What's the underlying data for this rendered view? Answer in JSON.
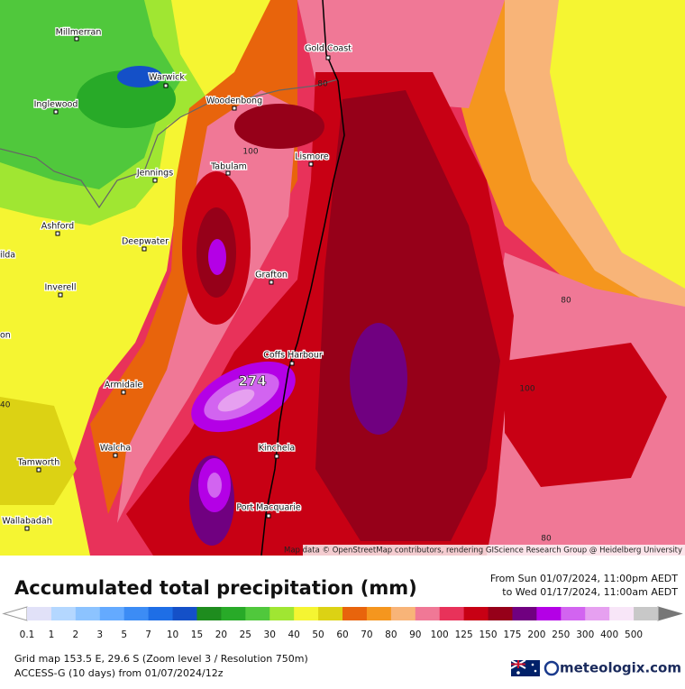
{
  "map": {
    "places": [
      "Millmerran",
      "Warwick",
      "Inglewood",
      "Woodenbong",
      "Gold Coast",
      "Lismore",
      "Tabulam",
      "Jennings",
      "Ashford",
      "Deepwater",
      "Inverell",
      "Grafton",
      "Coffs Harbour",
      "Armidale",
      "Walcha",
      "Kinchela",
      "Tamworth",
      "Port Macquarie",
      "Wallabadah",
      "ilda",
      "on"
    ],
    "contour_labels": [
      "80",
      "100",
      "80",
      "100",
      "80",
      "40"
    ],
    "max_label": "274",
    "attribution": "Map data © OpenStreetMap contributors, rendering GIScience Research Group @ Heidelberg University"
  },
  "header": {
    "title": "Accumulated total precipitation (mm)",
    "from": "From Sun 01/07/2024, 11:00pm AEDT",
    "to": "to Wed 01/17/2024, 11:00am AEDT"
  },
  "legend": {
    "items": [
      {
        "value": 0.1,
        "color": "#e1e1f8"
      },
      {
        "value": 1,
        "color": "#b4d7ff"
      },
      {
        "value": 2,
        "color": "#8cc3ff"
      },
      {
        "value": 3,
        "color": "#64aaff"
      },
      {
        "value": 5,
        "color": "#3c8cf5"
      },
      {
        "value": 7,
        "color": "#1e6ee6"
      },
      {
        "value": 10,
        "color": "#1450c8"
      },
      {
        "value": 15,
        "color": "#1e8c1e"
      },
      {
        "value": 20,
        "color": "#28aa28"
      },
      {
        "value": 25,
        "color": "#50c83c"
      },
      {
        "value": 30,
        "color": "#a0e632"
      },
      {
        "value": 40,
        "color": "#f5f532"
      },
      {
        "value": 50,
        "color": "#dcd214"
      },
      {
        "value": 60,
        "color": "#e8640c"
      },
      {
        "value": 70,
        "color": "#f5961e"
      },
      {
        "value": 80,
        "color": "#f8b478"
      },
      {
        "value": 90,
        "color": "#f07896"
      },
      {
        "value": 100,
        "color": "#e8325a"
      },
      {
        "value": 125,
        "color": "#c80014"
      },
      {
        "value": 150,
        "color": "#960019"
      },
      {
        "value": 175,
        "color": "#700080"
      },
      {
        "value": 200,
        "color": "#b400e6"
      },
      {
        "value": 250,
        "color": "#d264f0"
      },
      {
        "value": 300,
        "color": "#e6a0f0"
      },
      {
        "value": 400,
        "color": "#f8e6f8"
      },
      {
        "value": 500,
        "color": "#c8c8c8"
      }
    ]
  },
  "footer": {
    "grid": "Grid map 153.5 E, 29.6 S (Zoom level 3 / Resolution 750m)",
    "model": "ACCESS-G (10 days) from 01/07/2024/12z",
    "brand": "meteologix.com"
  }
}
